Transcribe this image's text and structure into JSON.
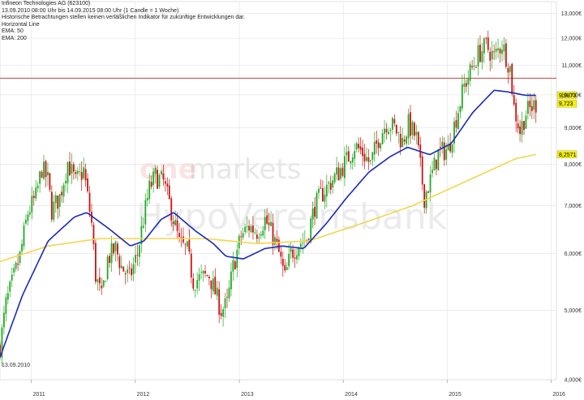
{
  "header": {
    "title": "Infineon Technologies AG (623100)",
    "period": "13.09.2010 08:00 Uhr bis 14.09.2015 08:00 Uhr (1 Candle = 1 Woche)",
    "disclaimer": "Historische Betrachtungen stellen keinen verläßlichen Indikator für zukünftige Entwicklungen dar.",
    "indicators": [
      "Horizontal Line",
      "EMA: 50",
      "EMA: 200"
    ]
  },
  "watermark": {
    "brand_one": "one",
    "brand_markets": "markets",
    "bank": "HypoVereinsbank"
  },
  "start_date_label": "13.09.2010",
  "colors": {
    "up": "#22aa22",
    "down": "#cc1111",
    "ema50": "#1a2ab8",
    "ema200": "#f2d64b",
    "hline": "#c95b55",
    "tag_bg": "#f7f200"
  },
  "chart_data": {
    "type": "candlestick",
    "y_scale": "log",
    "ylim": [
      4,
      13.5
    ],
    "xlim": [
      "2010-09-13",
      "2016-01-20"
    ],
    "y_ticks": [
      4,
      5,
      6,
      7,
      8,
      9,
      10,
      11,
      12,
      13
    ],
    "y_tick_labels": [
      "4,000€",
      "5,000€",
      "6,000€",
      "7,000€",
      "8,000€",
      "9,000€",
      "10,000€",
      "11,000€",
      "12,000€",
      "13,000€"
    ],
    "x_ticks": [
      "2011-01-01",
      "2012-01-01",
      "2013-01-01",
      "2014-01-01",
      "2015-01-01",
      "2016-01-01"
    ],
    "x_tick_labels": [
      "2011",
      "2012",
      "2013",
      "2014",
      "2015",
      "2016"
    ],
    "horizontal_line": 10.55,
    "value_tags": [
      {
        "label": "9,9873",
        "value": 9.9873
      },
      {
        "label": "9,723",
        "value": 9.723
      },
      {
        "label": "8,2571",
        "value": 8.2571
      }
    ],
    "close_anchors": [
      [
        "2010-09-13",
        4.45
      ],
      [
        "2010-10-04",
        5.1
      ],
      [
        "2010-10-25",
        5.45
      ],
      [
        "2010-11-22",
        5.95
      ],
      [
        "2010-12-20",
        6.85
      ],
      [
        "2011-01-17",
        7.2
      ],
      [
        "2011-02-07",
        7.9
      ],
      [
        "2011-02-28",
        7.6
      ],
      [
        "2011-03-14",
        6.9
      ],
      [
        "2011-04-11",
        7.2
      ],
      [
        "2011-05-09",
        8.05
      ],
      [
        "2011-06-06",
        7.55
      ],
      [
        "2011-07-04",
        7.85
      ],
      [
        "2011-08-01",
        6.6
      ],
      [
        "2011-08-15",
        5.6
      ],
      [
        "2011-09-05",
        5.2
      ],
      [
        "2011-09-26",
        5.9
      ],
      [
        "2011-10-24",
        6.1
      ],
      [
        "2011-11-14",
        5.75
      ],
      [
        "2011-12-12",
        5.55
      ],
      [
        "2012-01-09",
        6.0
      ],
      [
        "2012-01-30",
        6.7
      ],
      [
        "2012-02-20",
        7.4
      ],
      [
        "2012-03-12",
        7.7
      ],
      [
        "2012-04-09",
        7.55
      ],
      [
        "2012-05-07",
        6.9
      ],
      [
        "2012-06-04",
        6.2
      ],
      [
        "2012-07-02",
        6.05
      ],
      [
        "2012-07-23",
        5.5
      ],
      [
        "2012-08-20",
        5.55
      ],
      [
        "2012-09-17",
        5.6
      ],
      [
        "2012-10-08",
        5.3
      ],
      [
        "2012-10-29",
        5.0
      ],
      [
        "2012-11-19",
        5.1
      ],
      [
        "2012-12-10",
        5.75
      ],
      [
        "2013-01-07",
        6.35
      ],
      [
        "2013-02-04",
        6.55
      ],
      [
        "2013-03-04",
        6.45
      ],
      [
        "2013-04-01",
        6.7
      ],
      [
        "2013-04-29",
        6.35
      ],
      [
        "2013-05-20",
        6.0
      ],
      [
        "2013-06-10",
        5.55
      ],
      [
        "2013-07-01",
        6.0
      ],
      [
        "2013-07-29",
        6.2
      ],
      [
        "2013-08-26",
        6.3
      ],
      [
        "2013-09-23",
        7.0
      ],
      [
        "2013-10-21",
        7.3
      ],
      [
        "2013-11-18",
        7.55
      ],
      [
        "2013-12-16",
        7.8
      ],
      [
        "2014-01-13",
        8.1
      ],
      [
        "2014-02-10",
        8.5
      ],
      [
        "2014-03-10",
        8.3
      ],
      [
        "2014-04-07",
        8.0
      ],
      [
        "2014-05-05",
        8.7
      ],
      [
        "2014-06-02",
        9.15
      ],
      [
        "2014-06-30",
        9.0
      ],
      [
        "2014-07-28",
        8.6
      ],
      [
        "2014-08-18",
        9.1
      ],
      [
        "2014-09-15",
        8.7
      ],
      [
        "2014-10-13",
        7.2
      ],
      [
        "2014-11-03",
        7.6
      ],
      [
        "2014-12-01",
        8.3
      ],
      [
        "2015-01-05",
        8.4
      ],
      [
        "2015-02-02",
        9.3
      ],
      [
        "2015-03-02",
        10.3
      ],
      [
        "2015-03-30",
        10.9
      ],
      [
        "2015-04-20",
        11.4
      ],
      [
        "2015-05-18",
        11.7
      ],
      [
        "2015-06-15",
        11.3
      ],
      [
        "2015-07-13",
        11.8
      ],
      [
        "2015-08-10",
        10.9
      ],
      [
        "2015-08-24",
        9.6
      ],
      [
        "2015-09-14",
        8.9
      ],
      [
        "2015-10-05",
        9.45
      ],
      [
        "2015-11-09",
        9.72
      ]
    ],
    "ema50_anchors": [
      [
        "2010-09-13",
        4.3
      ],
      [
        "2010-12-01",
        5.25
      ],
      [
        "2011-03-01",
        6.25
      ],
      [
        "2011-06-01",
        6.75
      ],
      [
        "2011-07-15",
        6.85
      ],
      [
        "2011-10-01",
        6.5
      ],
      [
        "2011-12-15",
        6.15
      ],
      [
        "2012-02-01",
        6.25
      ],
      [
        "2012-04-01",
        6.7
      ],
      [
        "2012-05-15",
        6.85
      ],
      [
        "2012-08-01",
        6.45
      ],
      [
        "2012-10-01",
        6.2
      ],
      [
        "2012-11-15",
        5.95
      ],
      [
        "2013-01-15",
        5.9
      ],
      [
        "2013-04-01",
        6.1
      ],
      [
        "2013-06-01",
        6.15
      ],
      [
        "2013-08-15",
        6.1
      ],
      [
        "2013-11-01",
        6.6
      ],
      [
        "2014-01-15",
        7.2
      ],
      [
        "2014-04-01",
        7.8
      ],
      [
        "2014-06-15",
        8.2
      ],
      [
        "2014-08-15",
        8.45
      ],
      [
        "2014-11-01",
        8.25
      ],
      [
        "2015-01-15",
        8.55
      ],
      [
        "2015-04-01",
        9.45
      ],
      [
        "2015-06-15",
        10.15
      ],
      [
        "2015-08-01",
        10.1
      ],
      [
        "2015-10-01",
        9.99
      ],
      [
        "2015-11-09",
        9.9873
      ]
    ],
    "ema200_anchors": [
      [
        "2010-09-13",
        5.85
      ],
      [
        "2011-03-01",
        6.15
      ],
      [
        "2011-09-01",
        6.3
      ],
      [
        "2012-03-01",
        6.3
      ],
      [
        "2012-09-01",
        6.3
      ],
      [
        "2013-03-01",
        6.2
      ],
      [
        "2013-09-01",
        6.25
      ],
      [
        "2014-03-01",
        6.6
      ],
      [
        "2014-09-01",
        7.0
      ],
      [
        "2015-03-01",
        7.55
      ],
      [
        "2015-09-01",
        8.15
      ],
      [
        "2015-11-09",
        8.2571
      ]
    ]
  }
}
